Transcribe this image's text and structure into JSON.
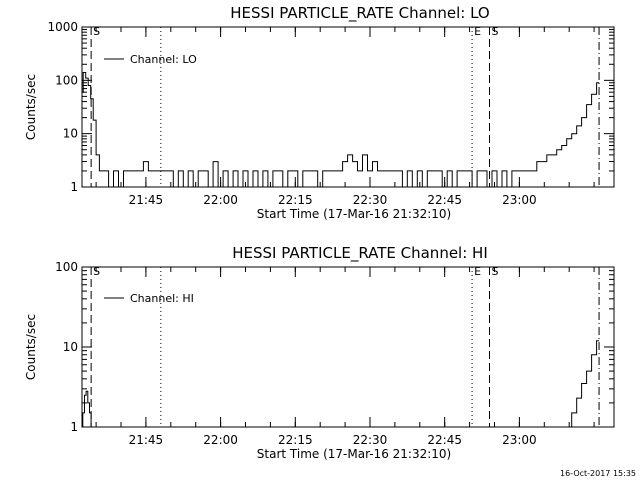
{
  "chart_data": [
    {
      "type": "line",
      "title": "HESSI PARTICLE_RATE Channel: LO",
      "xlabel": "Start Time (17-Mar-16 21:32:10)",
      "ylabel": "Counts/sec",
      "yscale": "log",
      "ylim": [
        1,
        1000
      ],
      "xlim": [
        "21:32:10",
        "23:19:00"
      ],
      "x_ticks": [
        "21:45",
        "22:00",
        "22:15",
        "22:30",
        "22:45",
        "23:00"
      ],
      "y_ticks": [
        "1",
        "10",
        "100",
        "1000"
      ],
      "legend": {
        "entries": [
          "Channel: LO"
        ],
        "placement": "top-left"
      },
      "grid": false,
      "event_markers": [
        {
          "label": "S",
          "time": "21:34:00",
          "style": "dashed"
        },
        {
          "label": "",
          "time": "21:48:00",
          "style": "dotted"
        },
        {
          "label": "E",
          "time": "22:50:30",
          "style": "dotted"
        },
        {
          "label": "S",
          "time": "22:54:00",
          "style": "dashed"
        },
        {
          "label": "",
          "time": "23:16:00",
          "style": "dashdot"
        }
      ],
      "series": [
        {
          "name": "Channel: LO",
          "x": [
            "21:32:10",
            "21:32:40",
            "21:33:10",
            "21:33:40",
            "21:34:10",
            "21:34:40",
            "21:35:20",
            "21:36:00",
            "21:37:00",
            "21:38:00",
            "21:39:00",
            "21:40:00",
            "21:41:00",
            "21:42:00",
            "21:43:00",
            "21:44:00",
            "21:45:00",
            "21:46:00",
            "21:47:00",
            "21:48:00",
            "21:49:00",
            "21:50:00",
            "21:51:00",
            "21:52:00",
            "21:53:00",
            "21:54:00",
            "21:55:00",
            "21:56:00",
            "21:57:00",
            "21:58:00",
            "21:59:00",
            "22:00:00",
            "22:01:00",
            "22:02:00",
            "22:03:00",
            "22:04:00",
            "22:05:00",
            "22:06:00",
            "22:07:00",
            "22:08:00",
            "22:09:00",
            "22:10:00",
            "22:11:00",
            "22:12:00",
            "22:13:00",
            "22:14:00",
            "22:15:00",
            "22:16:00",
            "22:17:00",
            "22:18:00",
            "22:19:00",
            "22:20:00",
            "22:21:00",
            "22:22:00",
            "22:23:00",
            "22:24:00",
            "22:25:00",
            "22:26:00",
            "22:27:00",
            "22:28:00",
            "22:29:00",
            "22:30:00",
            "22:31:00",
            "22:32:00",
            "22:33:00",
            "22:34:00",
            "22:35:00",
            "22:36:00",
            "22:37:00",
            "22:38:00",
            "22:39:00",
            "22:40:00",
            "22:41:00",
            "22:42:00",
            "22:43:00",
            "22:44:00",
            "22:45:00",
            "22:46:00",
            "22:47:00",
            "22:48:00",
            "22:49:00",
            "22:50:00",
            "22:51:00",
            "22:52:00",
            "22:53:00",
            "22:54:00",
            "22:55:00",
            "22:56:00",
            "22:57:00",
            "22:58:00",
            "22:59:00",
            "23:00:00",
            "23:01:00",
            "23:02:00",
            "23:03:00",
            "23:04:00",
            "23:05:00",
            "23:06:00",
            "23:07:00",
            "23:08:00",
            "23:09:00",
            "23:10:00",
            "23:11:00",
            "23:12:00",
            "23:13:00",
            "23:14:00",
            "23:15:00",
            "23:16:00"
          ],
          "y": [
            60,
            140,
            110,
            80,
            45,
            18,
            4,
            2,
            2,
            1,
            2,
            1,
            2,
            2,
            2,
            2,
            3,
            2,
            2,
            2,
            2,
            2,
            1,
            2,
            1,
            2,
            1,
            2,
            2,
            1,
            3,
            1,
            2,
            1,
            2,
            1,
            2,
            1,
            2,
            1,
            2,
            1,
            2,
            2,
            1,
            2,
            2,
            1,
            2,
            2,
            2,
            1,
            2,
            2,
            2,
            2,
            3,
            4,
            3,
            2,
            4,
            2,
            3,
            2,
            2,
            2,
            2,
            2,
            1,
            2,
            1,
            2,
            1,
            2,
            2,
            2,
            1,
            2,
            1,
            2,
            2,
            2,
            1,
            2,
            2,
            1,
            2,
            1,
            2,
            1,
            2,
            2,
            2,
            2,
            2,
            3,
            3,
            4,
            4,
            5,
            6,
            8,
            10,
            14,
            20,
            35,
            55,
            90
          ]
        }
      ]
    },
    {
      "type": "line",
      "title": "HESSI PARTICLE_RATE Channel: HI",
      "xlabel": "Start Time (17-Mar-16 21:32:10)",
      "ylabel": "Counts/sec",
      "yscale": "log",
      "ylim": [
        1,
        100
      ],
      "xlim": [
        "21:32:10",
        "23:19:00"
      ],
      "x_ticks": [
        "21:45",
        "22:00",
        "22:15",
        "22:30",
        "22:45",
        "23:00"
      ],
      "y_ticks": [
        "1",
        "10",
        "100"
      ],
      "legend": {
        "entries": [
          "Channel: HI"
        ],
        "placement": "top-left"
      },
      "grid": false,
      "event_markers": [
        {
          "label": "S",
          "time": "21:34:00",
          "style": "dashed"
        },
        {
          "label": "",
          "time": "21:48:00",
          "style": "dotted"
        },
        {
          "label": "E",
          "time": "22:50:30",
          "style": "dotted"
        },
        {
          "label": "S",
          "time": "22:54:00",
          "style": "dashed"
        },
        {
          "label": "",
          "time": "23:16:00",
          "style": "dashdot"
        }
      ],
      "series": [
        {
          "name": "Channel: HI",
          "x": [
            "21:32:10",
            "21:32:30",
            "21:32:50",
            "21:33:10",
            "21:33:30",
            "21:33:50",
            "21:34:10",
            "23:10:00",
            "23:11:00",
            "23:12:00",
            "23:13:00",
            "23:14:00",
            "23:15:00",
            "23:16:00"
          ],
          "y": [
            1,
            1.5,
            2.5,
            2.8,
            2,
            1.5,
            1,
            1,
            1.5,
            2.3,
            3.5,
            5,
            8,
            12
          ]
        }
      ]
    }
  ],
  "footer": {
    "timestamp": "16-Oct-2017 15:35"
  }
}
